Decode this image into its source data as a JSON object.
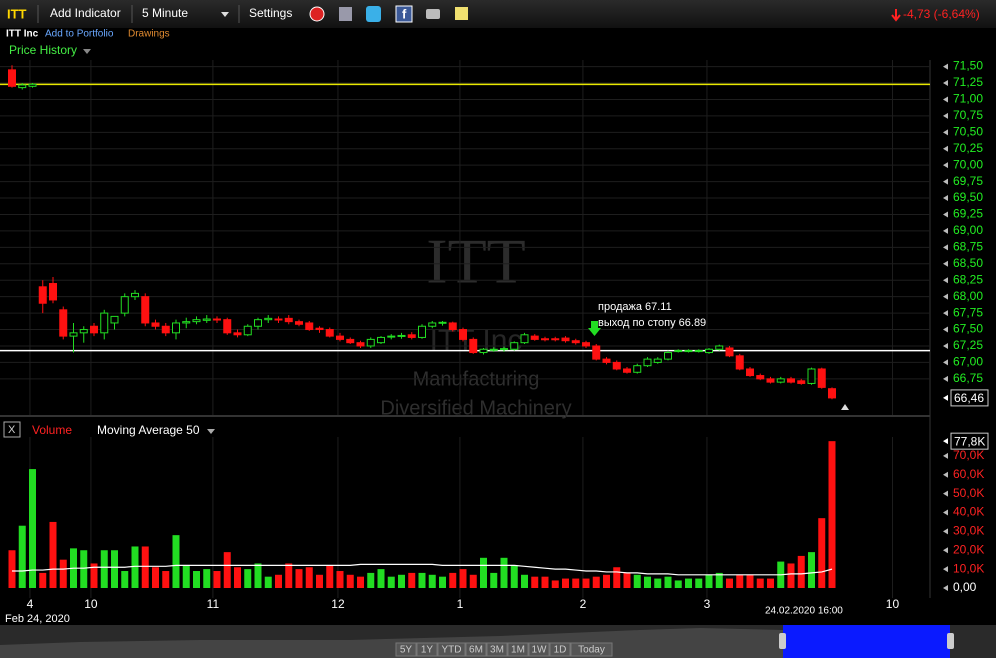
{
  "toolbar": {
    "symbol": "ITT",
    "add_indicator": "Add Indicator",
    "interval": "5 Minute",
    "settings": "Settings",
    "change": "-4,73 (-6,64%)",
    "company": "ITT Inc",
    "add_portfolio": "Add to Portfolio",
    "drawings": "Drawings",
    "price_history": "Price History"
  },
  "watermark": {
    "symbol": "ITT",
    "company": "ITT Inc",
    "sector": "Manufacturing",
    "industry": "Diversified Machinery"
  },
  "navigator": {
    "date": "Feb 24, 2020",
    "crosshair": "24.02.2020 16:00",
    "ranges": [
      "5Y",
      "1Y",
      "YTD",
      "6M",
      "3M",
      "1M",
      "1W",
      "1D",
      "Today"
    ]
  },
  "chart_data": [
    {
      "type": "candlestick",
      "up_color": "#22dd22",
      "down_color": "#ff1111",
      "ylim": [
        66.2,
        71.6
      ],
      "yticks": [
        {
          "value": 66.75,
          "label": "66,75"
        },
        {
          "value": 67,
          "label": "67,00"
        },
        {
          "value": 67.25,
          "label": "67,25"
        },
        {
          "value": 67.5,
          "label": "67,50"
        },
        {
          "value": 67.75,
          "label": "67,75"
        },
        {
          "value": 68,
          "label": "68,00"
        },
        {
          "value": 68.25,
          "label": "68,25"
        },
        {
          "value": 68.5,
          "label": "68,50"
        },
        {
          "value": 68.75,
          "label": "68,75"
        },
        {
          "value": 69,
          "label": "69,00"
        },
        {
          "value": 69.25,
          "label": "69,25"
        },
        {
          "value": 69.5,
          "label": "69,50"
        },
        {
          "value": 69.75,
          "label": "69,75"
        },
        {
          "value": 70,
          "label": "70,00"
        },
        {
          "value": 70.25,
          "label": "70,25"
        },
        {
          "value": 70.5,
          "label": "70,50"
        },
        {
          "value": 70.75,
          "label": "70,75"
        },
        {
          "value": 71,
          "label": "71,00"
        },
        {
          "value": 71.25,
          "label": "71,25"
        },
        {
          "value": 71.5,
          "label": "71,50"
        }
      ],
      "xticks": [
        {
          "value": 1.75,
          "label": "4"
        },
        {
          "value": 7.7,
          "label": "10"
        },
        {
          "value": 19.6,
          "label": "11"
        },
        {
          "value": 31.8,
          "label": "12"
        },
        {
          "value": 43.7,
          "label": "1"
        },
        {
          "value": 55.7,
          "label": "2"
        },
        {
          "value": 67.8,
          "label": "3"
        },
        {
          "value": 85.9,
          "label": "10"
        }
      ],
      "grid": true,
      "last": {
        "value": 66.46,
        "label": "66,46"
      },
      "lines": [
        {
          "value": 71.23,
          "color": "#e8e800"
        },
        {
          "value": 67.18,
          "color": "#ffffff"
        }
      ],
      "annotations": [
        "продажа 67.11",
        "выход по стопу 66.89"
      ],
      "ohlc": [
        [
          71.45,
          71.52,
          71.18,
          71.2
        ],
        [
          71.18,
          71.25,
          71.15,
          71.22
        ],
        [
          71.2,
          71.25,
          71.18,
          71.23
        ],
        [
          68.15,
          68.25,
          67.75,
          67.9
        ],
        [
          68.2,
          68.3,
          67.9,
          67.95
        ],
        [
          67.8,
          67.85,
          67.35,
          67.4
        ],
        [
          67.4,
          67.6,
          67.15,
          67.45
        ],
        [
          67.45,
          67.55,
          67.3,
          67.5
        ],
        [
          67.55,
          67.6,
          67.4,
          67.45
        ],
        [
          67.45,
          67.8,
          67.35,
          67.75
        ],
        [
          67.6,
          67.7,
          67.5,
          67.7
        ],
        [
          67.75,
          68.05,
          67.7,
          68.0
        ],
        [
          68.0,
          68.1,
          67.95,
          68.05
        ],
        [
          68.0,
          68.05,
          67.55,
          67.6
        ],
        [
          67.6,
          67.65,
          67.5,
          67.55
        ],
        [
          67.55,
          67.6,
          67.4,
          67.45
        ],
        [
          67.45,
          67.65,
          67.35,
          67.6
        ],
        [
          67.6,
          67.68,
          67.52,
          67.62
        ],
        [
          67.62,
          67.7,
          67.58,
          67.65
        ],
        [
          67.64,
          67.72,
          67.6,
          67.66
        ],
        [
          67.66,
          67.7,
          67.6,
          67.65
        ],
        [
          67.65,
          67.68,
          67.42,
          67.45
        ],
        [
          67.45,
          67.5,
          67.38,
          67.42
        ],
        [
          67.42,
          67.58,
          67.4,
          67.55
        ],
        [
          67.55,
          67.68,
          67.5,
          67.65
        ],
        [
          67.65,
          67.72,
          67.6,
          67.67
        ],
        [
          67.66,
          67.7,
          67.6,
          67.65
        ],
        [
          67.67,
          67.72,
          67.58,
          67.62
        ],
        [
          67.62,
          67.65,
          67.55,
          67.58
        ],
        [
          67.6,
          67.63,
          67.48,
          67.5
        ],
        [
          67.52,
          67.55,
          67.45,
          67.5
        ],
        [
          67.5,
          67.53,
          67.38,
          67.4
        ],
        [
          67.4,
          67.45,
          67.32,
          67.35
        ],
        [
          67.35,
          67.38,
          67.28,
          67.3
        ],
        [
          67.3,
          67.33,
          67.22,
          67.25
        ],
        [
          67.25,
          67.38,
          67.22,
          67.35
        ],
        [
          67.3,
          67.4,
          67.28,
          67.38
        ],
        [
          67.39,
          67.43,
          67.35,
          67.4
        ],
        [
          67.4,
          67.45,
          67.36,
          67.41
        ],
        [
          67.42,
          67.46,
          67.35,
          67.38
        ],
        [
          67.38,
          67.58,
          67.36,
          67.55
        ],
        [
          67.55,
          67.63,
          67.52,
          67.6
        ],
        [
          67.6,
          67.63,
          67.56,
          67.61
        ],
        [
          67.6,
          67.62,
          67.47,
          67.5
        ],
        [
          67.5,
          67.53,
          67.32,
          67.35
        ],
        [
          67.35,
          67.38,
          67.13,
          67.15
        ],
        [
          67.15,
          67.22,
          67.12,
          67.2
        ],
        [
          67.19,
          67.23,
          67.16,
          67.2
        ],
        [
          67.2,
          67.24,
          67.16,
          67.21
        ],
        [
          67.2,
          67.32,
          67.18,
          67.3
        ],
        [
          67.3,
          67.45,
          67.28,
          67.42
        ],
        [
          67.4,
          67.43,
          67.33,
          67.35
        ],
        [
          67.36,
          67.39,
          67.32,
          67.35
        ],
        [
          67.36,
          67.39,
          67.32,
          67.35
        ],
        [
          67.37,
          67.4,
          67.3,
          67.33
        ],
        [
          67.33,
          67.36,
          67.27,
          67.3
        ],
        [
          67.3,
          67.33,
          67.22,
          67.25
        ],
        [
          67.25,
          67.28,
          67.03,
          67.05
        ],
        [
          67.05,
          67.08,
          66.97,
          67.0
        ],
        [
          67.0,
          67.03,
          66.88,
          66.9
        ],
        [
          66.9,
          66.93,
          66.83,
          66.85
        ],
        [
          66.85,
          66.98,
          66.83,
          66.95
        ],
        [
          66.95,
          67.08,
          66.93,
          67.05
        ],
        [
          67.0,
          67.08,
          66.98,
          67.05
        ],
        [
          67.05,
          67.18,
          67.03,
          67.15
        ],
        [
          67.17,
          67.2,
          67.15,
          67.18
        ],
        [
          67.17,
          67.2,
          67.15,
          67.18
        ],
        [
          67.17,
          67.2,
          67.15,
          67.18
        ],
        [
          67.15,
          67.22,
          67.13,
          67.2
        ],
        [
          67.2,
          67.27,
          67.18,
          67.25
        ],
        [
          67.22,
          67.25,
          67.08,
          67.1
        ],
        [
          67.1,
          67.13,
          66.88,
          66.9
        ],
        [
          66.9,
          66.93,
          66.78,
          66.8
        ],
        [
          66.8,
          66.83,
          66.73,
          66.75
        ],
        [
          66.75,
          66.78,
          66.68,
          66.7
        ],
        [
          66.7,
          66.78,
          66.68,
          66.75
        ],
        [
          66.75,
          66.78,
          66.68,
          66.7
        ],
        [
          66.72,
          66.75,
          66.66,
          66.68
        ],
        [
          66.68,
          66.92,
          66.66,
          66.9
        ],
        [
          66.9,
          66.92,
          66.6,
          66.62
        ],
        [
          66.6,
          66.62,
          66.44,
          66.46
        ]
      ]
    },
    {
      "type": "bar",
      "title": "Volume",
      "ylim": [
        0,
        80000
      ],
      "yticks": [
        {
          "value": 0,
          "label": "0,00"
        },
        {
          "value": 10000,
          "label": "10,0K"
        },
        {
          "value": 20000,
          "label": "20,0K"
        },
        {
          "value": 30000,
          "label": "30,0K"
        },
        {
          "value": 40000,
          "label": "40,0K"
        },
        {
          "value": 50000,
          "label": "50,0K"
        },
        {
          "value": 60000,
          "label": "60,0K"
        },
        {
          "value": 70000,
          "label": "70,0K"
        }
      ],
      "last": {
        "value": 77800,
        "label": "77,8K"
      },
      "values": [
        20000,
        33000,
        63000,
        8000,
        35000,
        15000,
        21000,
        20000,
        13000,
        20000,
        20000,
        9000,
        22000,
        22000,
        11000,
        9000,
        28000,
        12000,
        9000,
        10000,
        9000,
        19000,
        11000,
        10000,
        13000,
        6000,
        7000,
        13000,
        10000,
        11000,
        7000,
        12000,
        9000,
        7000,
        6000,
        8000,
        10000,
        6000,
        7000,
        8000,
        8000,
        7000,
        6000,
        8000,
        10000,
        7000,
        16000,
        8000,
        16000,
        12000,
        7000,
        6000,
        6000,
        4000,
        5000,
        5000,
        5000,
        6000,
        7000,
        11000,
        8000,
        7000,
        6000,
        5000,
        6000,
        4000,
        5000,
        5000,
        7000,
        8000,
        5000,
        7000,
        7000,
        5000,
        5000,
        14000,
        13000,
        17000,
        19000,
        37000,
        77800
      ],
      "ma": {
        "name": "Moving Average 50",
        "color": "#ffffff",
        "values": [
          9000,
          9000,
          9500,
          9500,
          10000,
          10000,
          10500,
          10500,
          11000,
          11000,
          11000,
          11000,
          11500,
          11500,
          11500,
          11500,
          12000,
          12000,
          12000,
          12000,
          12000,
          12000,
          12000,
          12000,
          12000,
          12000,
          12000,
          12000,
          12000,
          12000,
          12000,
          12000,
          12000,
          12000,
          12500,
          12500,
          12500,
          12500,
          12500,
          12500,
          12500,
          12500,
          12000,
          12000,
          12000,
          12000,
          12000,
          12000,
          12000,
          12000,
          11500,
          11000,
          10500,
          10000,
          10000,
          9500,
          9000,
          9000,
          8500,
          8500,
          8000,
          8000,
          7500,
          7500,
          7500,
          7000,
          7000,
          7000,
          7000,
          7000,
          7000,
          7000,
          7000,
          7000,
          7000,
          7000,
          7500,
          7500,
          8000,
          8500,
          10000
        ]
      }
    }
  ]
}
